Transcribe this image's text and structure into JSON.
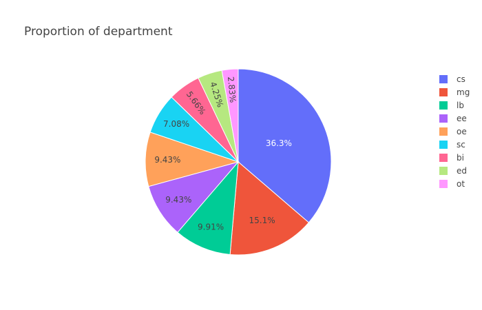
{
  "chart_data": {
    "type": "pie",
    "title": "Proportion of department",
    "sort": "descending",
    "direction": "clockwise",
    "start": "12 o'clock",
    "legend_position": "right",
    "slices": [
      {
        "label": "cs",
        "percent": 36.3,
        "text": "36.3%",
        "color": "#636EFA",
        "text_color": "#ffffff"
      },
      {
        "label": "mg",
        "percent": 15.1,
        "text": "15.1%",
        "color": "#EF553B",
        "text_color": "#444444"
      },
      {
        "label": "lb",
        "percent": 9.91,
        "text": "9.91%",
        "color": "#00CC96",
        "text_color": "#444444"
      },
      {
        "label": "ee",
        "percent": 9.43,
        "text": "9.43%",
        "color": "#AB63FA",
        "text_color": "#444444"
      },
      {
        "label": "oe",
        "percent": 9.43,
        "text": "9.43%",
        "color": "#FFA15A",
        "text_color": "#444444"
      },
      {
        "label": "sc",
        "percent": 7.08,
        "text": "7.08%",
        "color": "#19D3F3",
        "text_color": "#444444"
      },
      {
        "label": "bi",
        "percent": 5.66,
        "text": "5.66%",
        "color": "#FF6692",
        "text_color": "#444444"
      },
      {
        "label": "ed",
        "percent": 4.25,
        "text": "4.25%",
        "color": "#B6E880",
        "text_color": "#444444"
      },
      {
        "label": "ot",
        "percent": 2.83,
        "text": "2.83%",
        "color": "#FF97FF",
        "text_color": "#444444"
      }
    ]
  }
}
